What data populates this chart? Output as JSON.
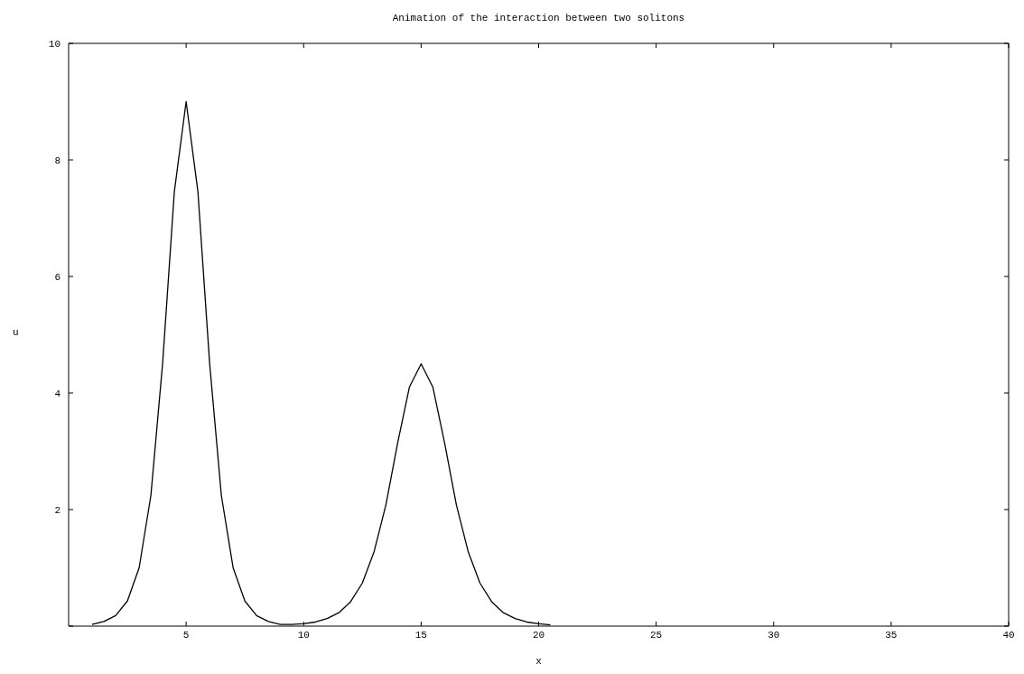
{
  "chart_data": {
    "type": "line",
    "title": "Animation of the interaction between two solitons",
    "xlabel": "x",
    "ylabel": "u",
    "x": [
      1,
      1.5,
      2,
      2.5,
      3,
      3.5,
      4,
      4.5,
      5,
      5.5,
      6,
      6.5,
      7,
      7.5,
      8,
      8.5,
      9,
      9.5,
      10,
      10.5,
      11,
      11.5,
      12,
      12.5,
      13,
      13.5,
      14,
      14.5,
      15,
      15.5,
      16,
      16.5,
      17,
      17.5,
      18,
      18.5,
      19,
      19.5,
      20,
      20.5
    ],
    "series": [
      {
        "color": "#000000",
        "values": [
          0.03,
          0.08,
          0.18,
          0.43,
          1.0,
          2.24,
          4.51,
          7.46,
          9,
          7.46,
          4.51,
          2.24,
          1.0,
          0.43,
          0.18,
          0.08,
          0.03,
          0.03,
          0.04,
          0.07,
          0.13,
          0.23,
          0.42,
          0.74,
          1.28,
          2.08,
          3.14,
          4.1,
          4.5,
          4.1,
          3.14,
          2.08,
          1.28,
          0.74,
          0.42,
          0.23,
          0.13,
          0.07,
          0.04,
          0.02
        ]
      }
    ],
    "xlim": [
      0,
      40
    ],
    "xticks": [
      5,
      10,
      15,
      20,
      25,
      30,
      35,
      40
    ],
    "ylim": [
      0,
      10
    ],
    "yticks": [
      {
        "value": 0,
        "label": null
      },
      2,
      4,
      6,
      8,
      10
    ],
    "marker": "none",
    "line_style": "solid"
  }
}
